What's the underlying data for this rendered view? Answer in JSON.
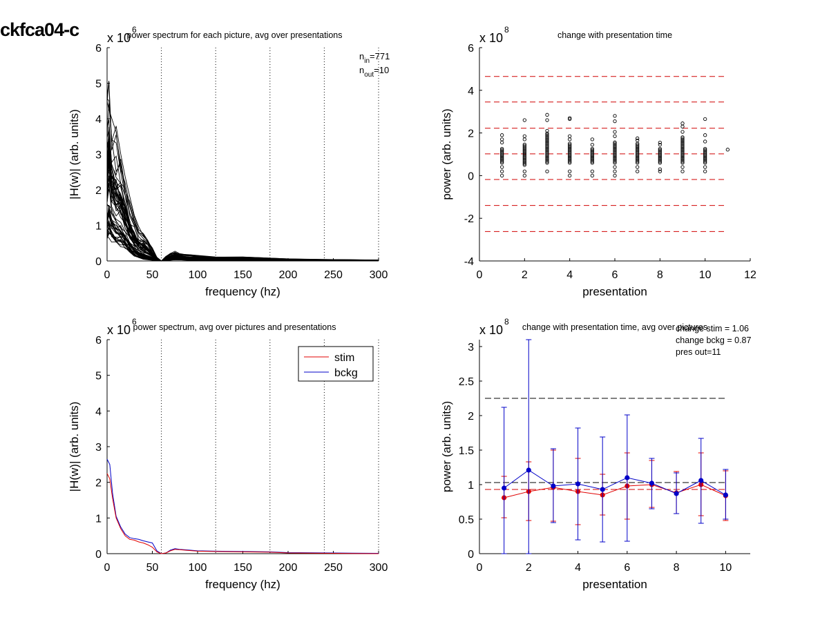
{
  "figure_title": "ckfca04-c",
  "chart_data": [
    {
      "panel": "top-left",
      "type": "line",
      "title": "power spectrum for each picture, avg over presentations",
      "xlabel": "frequency (hz)",
      "ylabel": "|H(w)| (arb. units)",
      "exponent_label": "x 10",
      "exponent": "6",
      "xlim": [
        0,
        300
      ],
      "ylim": [
        0,
        6
      ],
      "xticks": [
        0,
        50,
        100,
        150,
        200,
        250,
        300
      ],
      "yticks": [
        0,
        1,
        2,
        3,
        4,
        5,
        6
      ],
      "vlines": [
        60,
        120,
        180,
        240,
        300
      ],
      "annotations": [
        {
          "base": "n",
          "sub": "in",
          "text": "=771"
        },
        {
          "base": "n",
          "sub": "out",
          "text": "=10"
        }
      ],
      "envelope": {
        "x": [
          0,
          2,
          5,
          10,
          15,
          20,
          25,
          30,
          35,
          40,
          45,
          50,
          55,
          60,
          65,
          70,
          75,
          80,
          90,
          100,
          120,
          150,
          200,
          250,
          300
        ],
        "y_upper": [
          4.6,
          5.2,
          3.9,
          3.4,
          3.1,
          2.3,
          1.6,
          1.2,
          0.9,
          0.75,
          0.6,
          0.35,
          0.12,
          0.0,
          0.12,
          0.22,
          0.25,
          0.2,
          0.18,
          0.16,
          0.12,
          0.11,
          0.06,
          0.04,
          0.03
        ],
        "y_lower": [
          0.6,
          0.7,
          0.6,
          0.5,
          0.45,
          0.35,
          0.25,
          0.15,
          0.08,
          0.05,
          0.03,
          0.02,
          0.0,
          0.0,
          0.0,
          0.02,
          0.03,
          0.03,
          0.02,
          0.02,
          0.02,
          0.01,
          0.01,
          0.0,
          0.0
        ]
      }
    },
    {
      "panel": "top-right",
      "type": "scatter",
      "title": "change with presentation time",
      "xlabel": "presentation",
      "ylabel": "power (arb. units)",
      "exponent_label": "x 10",
      "exponent": "8",
      "xlim": [
        0,
        12
      ],
      "ylim": [
        -4,
        6
      ],
      "xticks": [
        0,
        2,
        4,
        6,
        8,
        10,
        12
      ],
      "yticks": [
        -4,
        -2,
        0,
        2,
        4,
        6
      ],
      "hlines": [
        4.65,
        3.45,
        2.22,
        1.02,
        -0.18,
        -1.4,
        -2.62
      ],
      "columns": [
        {
          "x": 1,
          "low": 0.6,
          "high": 1.3,
          "extra": [
            1.55,
            1.7,
            1.9,
            0.0,
            0.2,
            0.4
          ]
        },
        {
          "x": 2,
          "low": 0.5,
          "high": 1.5,
          "extra": [
            1.7,
            1.85,
            2.6,
            0.0,
            0.2
          ]
        },
        {
          "x": 3,
          "low": 0.6,
          "high": 2.0,
          "extra": [
            2.1,
            2.6,
            2.85,
            0.2
          ]
        },
        {
          "x": 4,
          "low": 0.6,
          "high": 1.5,
          "extra": [
            1.7,
            1.85,
            2.65,
            2.7,
            0.0,
            0.2
          ]
        },
        {
          "x": 5,
          "low": 0.6,
          "high": 1.3,
          "extra": [
            1.45,
            1.7,
            0.0,
            0.2
          ]
        },
        {
          "x": 6,
          "low": 0.6,
          "high": 1.6,
          "extra": [
            1.85,
            2.05,
            2.55,
            2.8,
            0.0,
            0.2,
            0.4
          ]
        },
        {
          "x": 7,
          "low": 0.6,
          "high": 1.5,
          "extra": [
            1.65,
            1.75,
            0.2,
            0.4
          ]
        },
        {
          "x": 8,
          "low": 0.6,
          "high": 1.3,
          "extra": [
            1.45,
            1.55,
            0.2,
            0.3
          ]
        },
        {
          "x": 9,
          "low": 0.6,
          "high": 1.8,
          "extra": [
            2.05,
            2.3,
            2.45,
            0.2,
            0.4
          ]
        },
        {
          "x": 10,
          "low": 0.6,
          "high": 1.3,
          "extra": [
            1.6,
            1.9,
            2.65,
            0.2,
            0.4
          ]
        },
        {
          "x": 11,
          "low": 1.22,
          "high": 1.22,
          "extra": []
        }
      ]
    },
    {
      "panel": "bottom-left",
      "type": "line",
      "title": "power spectrum, avg over pictures and presentations",
      "xlabel": "frequency (hz)",
      "ylabel": "|H(w)| (arb. units)",
      "exponent_label": "x 10",
      "exponent": "6",
      "xlim": [
        0,
        300
      ],
      "ylim": [
        0,
        6
      ],
      "xticks": [
        0,
        50,
        100,
        150,
        200,
        250,
        300
      ],
      "yticks": [
        0,
        1,
        2,
        3,
        4,
        5,
        6
      ],
      "vlines": [
        60,
        120,
        180,
        240,
        300
      ],
      "legend": {
        "position": "top-right"
      },
      "x": [
        0,
        3,
        6,
        10,
        15,
        20,
        25,
        30,
        35,
        40,
        45,
        50,
        55,
        60,
        65,
        70,
        75,
        80,
        90,
        100,
        120,
        150,
        180,
        200,
        250,
        300
      ],
      "series": [
        {
          "name": "stim",
          "color": "#e00000",
          "values": [
            2.25,
            2.1,
            1.55,
            1.0,
            0.7,
            0.5,
            0.4,
            0.38,
            0.33,
            0.3,
            0.25,
            0.18,
            0.05,
            0.0,
            0.02,
            0.08,
            0.12,
            0.11,
            0.09,
            0.07,
            0.06,
            0.05,
            0.04,
            0.02,
            0.01,
            0.0
          ]
        },
        {
          "name": "bckg",
          "color": "#0000c8",
          "values": [
            2.65,
            2.5,
            1.7,
            1.05,
            0.75,
            0.55,
            0.45,
            0.42,
            0.4,
            0.36,
            0.33,
            0.3,
            0.08,
            0.0,
            0.02,
            0.1,
            0.14,
            0.12,
            0.1,
            0.08,
            0.07,
            0.06,
            0.05,
            0.03,
            0.02,
            0.01
          ]
        }
      ]
    },
    {
      "panel": "bottom-right",
      "type": "line",
      "title": "change with presentation time, avg over pictures",
      "xlabel": "presentation",
      "ylabel": "power (arb. units)",
      "exponent_label": "x 10",
      "exponent": "8",
      "xlim": [
        0,
        11
      ],
      "ylim": [
        0,
        3.1
      ],
      "xticks": [
        0,
        2,
        4,
        6,
        8,
        10
      ],
      "yticks": [
        0,
        0.5,
        1,
        1.5,
        2,
        2.5,
        3
      ],
      "annotations": [
        "change stim = 1.06",
        "change bckg = 0.87",
        "pres out=11"
      ],
      "hlines": [
        2.25,
        1.03
      ],
      "x": [
        1,
        2,
        3,
        4,
        5,
        6,
        7,
        8,
        9,
        10
      ],
      "series": [
        {
          "name": "stim",
          "color": "#e00000",
          "values": [
            0.81,
            0.9,
            0.96,
            0.9,
            0.85,
            0.98,
            1.0,
            0.88,
            1.0,
            0.84
          ],
          "err_low": [
            0.52,
            0.48,
            0.47,
            0.42,
            0.56,
            0.5,
            0.67,
            0.58,
            0.55,
            0.48
          ],
          "err_high": [
            1.12,
            1.33,
            1.5,
            1.38,
            1.15,
            1.46,
            1.35,
            1.19,
            1.46,
            1.2
          ]
        },
        {
          "name": "bckg",
          "color": "#0000c8",
          "values": [
            0.95,
            1.21,
            0.98,
            1.01,
            0.93,
            1.1,
            1.02,
            0.87,
            1.06,
            0.85
          ],
          "err_low": [
            0.0,
            0.0,
            0.45,
            0.2,
            0.17,
            0.18,
            0.65,
            0.58,
            0.44,
            0.5
          ],
          "err_high": [
            2.12,
            3.1,
            1.52,
            1.82,
            1.69,
            2.01,
            1.38,
            1.17,
            1.67,
            1.22
          ]
        }
      ]
    }
  ]
}
